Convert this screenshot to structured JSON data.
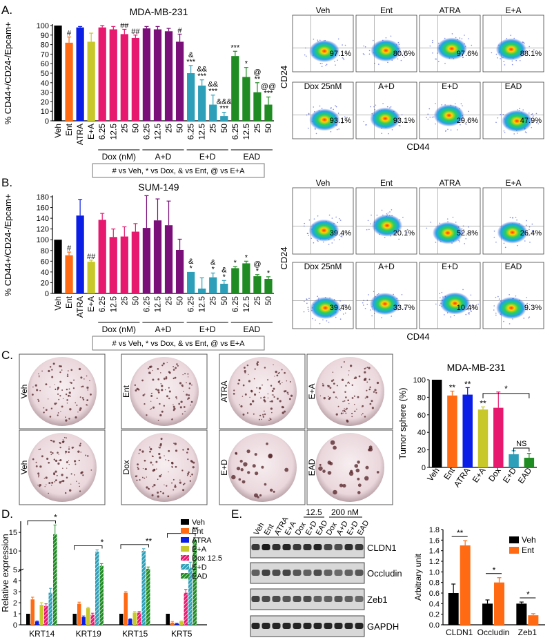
{
  "panels": {
    "A": "A.",
    "B": "B.",
    "C": "C.",
    "D": "D.",
    "E": "E."
  },
  "chart_data": [
    {
      "id": "A",
      "type": "bar",
      "title": "MDA-MB-231",
      "ylabel": "% CD44+/CD24-/Epcam+",
      "ylim": [
        0,
        100
      ],
      "yticks": [
        0,
        10,
        20,
        30,
        40,
        50,
        60,
        70,
        80,
        90,
        100
      ],
      "categories": [
        "Veh",
        "Ent",
        "ATRA",
        "E+A",
        "6.25",
        "12.5",
        "25",
        "50",
        "6.25",
        "12.5",
        "25",
        "50",
        "6.25",
        "12.5",
        "25",
        "50",
        "6.25",
        "12.5",
        "25",
        "50"
      ],
      "values": [
        100,
        82,
        98,
        83,
        98,
        96,
        91,
        87,
        97,
        96,
        94,
        83,
        50,
        37,
        17,
        5,
        68,
        46,
        30,
        17
      ],
      "errors": [
        0,
        6,
        1,
        9,
        2,
        3,
        5,
        3,
        2,
        3,
        3,
        8,
        8,
        6,
        10,
        4,
        5,
        10,
        10,
        8
      ],
      "colors": [
        "#000000",
        "#ff6a13",
        "#0a1ee6",
        "#c8c82a",
        "#e6196e",
        "#e6196e",
        "#e6196e",
        "#e6196e",
        "#7a0f7a",
        "#7a0f7a",
        "#7a0f7a",
        "#7a0f7a",
        "#2e9fb8",
        "#2e9fb8",
        "#2e9fb8",
        "#2e9fb8",
        "#1f8b22",
        "#1f8b22",
        "#1f8b22",
        "#1f8b22"
      ],
      "sig": [
        "",
        "#",
        "",
        "",
        "",
        "",
        "##",
        "##",
        "",
        "",
        "",
        "#",
        "&\n***",
        "&&\n***",
        "&&\n***",
        "&&&\n***",
        "***",
        "*",
        "@\n**",
        "@@\n***"
      ],
      "groups": [
        {
          "label": "Dox (nM)",
          "from": 4,
          "to": 7
        },
        {
          "label": "A+D",
          "from": 8,
          "to": 11
        },
        {
          "label": "E+D",
          "from": 12,
          "to": 15
        },
        {
          "label": "EAD",
          "from": 16,
          "to": 19
        }
      ],
      "legend_note": "# vs Veh, * vs Dox, & vs Ent, @ vs E+A"
    },
    {
      "id": "B",
      "type": "bar",
      "title": "SUM-149",
      "ylabel": "% CD44+/CD24-/Epcam+",
      "ylim": [
        0,
        180
      ],
      "yticks": [
        0,
        20,
        40,
        60,
        80,
        100,
        120,
        140,
        160,
        180
      ],
      "categories": [
        "Veh",
        "Ent",
        "ATRA",
        "E+A",
        "6.25",
        "12.5",
        "25",
        "50",
        "6.25",
        "12.5",
        "25",
        "50",
        "6.25",
        "12.5",
        "25",
        "50",
        "6.25",
        "12.5",
        "25",
        "50"
      ],
      "values": [
        100,
        71,
        145,
        59,
        137,
        105,
        106,
        115,
        122,
        136,
        127,
        81,
        40,
        9,
        30,
        18,
        47,
        56,
        32,
        27
      ],
      "errors": [
        0,
        6,
        30,
        3,
        12,
        15,
        18,
        15,
        60,
        40,
        45,
        20,
        0,
        20,
        8,
        6,
        3,
        4,
        3,
        4
      ],
      "colors": [
        "#000000",
        "#ff6a13",
        "#0a1ee6",
        "#c8c82a",
        "#e6196e",
        "#e6196e",
        "#e6196e",
        "#e6196e",
        "#7a0f7a",
        "#7a0f7a",
        "#7a0f7a",
        "#7a0f7a",
        "#2e9fb8",
        "#2e9fb8",
        "#2e9fb8",
        "#2e9fb8",
        "#1f8b22",
        "#1f8b22",
        "#1f8b22",
        "#1f8b22"
      ],
      "sig": [
        "",
        "#",
        "",
        "##",
        "",
        "",
        "",
        "",
        "",
        "",
        "",
        "",
        "&\n*",
        "",
        "&\n*",
        "&\n*",
        "*",
        "*",
        "@\n*",
        "*"
      ],
      "groups": [
        {
          "label": "Dox (nM)",
          "from": 4,
          "to": 7
        },
        {
          "label": "A+D",
          "from": 8,
          "to": 11
        },
        {
          "label": "E+D",
          "from": 12,
          "to": 15
        },
        {
          "label": "EAD",
          "from": 16,
          "to": 19
        }
      ],
      "legend_note": "# vs Veh, * vs Dox, & vs Ent, @ vs E+A"
    },
    {
      "id": "C",
      "type": "bar",
      "title": "MDA-MB-231",
      "ylabel": "Tumor sphere (%)",
      "ylim": [
        0,
        100
      ],
      "yticks": [
        0,
        20,
        40,
        60,
        80,
        100
      ],
      "categories": [
        "Veh",
        "Ent",
        "ATRA",
        "E+A",
        "Dox",
        "E+D",
        "EAD"
      ],
      "values": [
        100,
        82,
        83,
        66,
        68,
        15,
        11
      ],
      "errors": [
        0,
        5,
        8,
        3,
        18,
        4,
        5
      ],
      "colors": [
        "#000000",
        "#ff6a13",
        "#0a1ee6",
        "#c8c82a",
        "#e6196e",
        "#2e9fb8",
        "#1f8b22"
      ],
      "sig": [
        "",
        "**",
        "**",
        "**",
        "",
        "",
        ""
      ],
      "brackets": [
        {
          "from": 3,
          "to": 6,
          "label": "*"
        },
        {
          "from": 5,
          "to": 6,
          "label": "NS"
        }
      ]
    },
    {
      "id": "D",
      "type": "bar",
      "ylabel": "Relative expression",
      "ylim": [
        0,
        18
      ],
      "yticks": [
        0,
        1,
        2,
        3,
        4,
        5,
        10,
        15
      ],
      "axis_break": true,
      "categories": [
        "KRT14",
        "KRT19",
        "KRT15",
        "KRT5"
      ],
      "series": [
        {
          "name": "Veh",
          "color": "#000000",
          "values": [
            1,
            1,
            1,
            1
          ],
          "errors": [
            0,
            0,
            0,
            0
          ]
        },
        {
          "name": "Ent",
          "color": "#ff6a13",
          "values": [
            2.3,
            1.9,
            2.9,
            0.2
          ],
          "errors": [
            0.2,
            0.15,
            0.1,
            0.1
          ]
        },
        {
          "name": "ATRA",
          "color": "#0a1ee6",
          "values": [
            0.3,
            0.7,
            0.5,
            0.1
          ],
          "errors": [
            0.05,
            0.1,
            0.05,
            0.05
          ]
        },
        {
          "name": "E+A",
          "color": "#c8c82a",
          "values": [
            1.8,
            1.5,
            1.1,
            0.3
          ],
          "errors": [
            0.2,
            0.1,
            0.1,
            0.05
          ]
        },
        {
          "name": "Dox 12.5",
          "color": "#e6196e",
          "values": [
            1.7,
            0.9,
            1.1,
            2.9
          ],
          "errors": [
            0.2,
            0.15,
            0.1,
            0.3
          ]
        },
        {
          "name": "E+D",
          "color": "#2e9fb8",
          "values": [
            2.9,
            9.8,
            10,
            5.5
          ],
          "errors": [
            0.4,
            0.5,
            0.6,
            1.5
          ]
        },
        {
          "name": "EAD",
          "color": "#1f8b22",
          "values": [
            14.5,
            6,
            5.2,
            13
          ],
          "errors": [
            2.5,
            0.6,
            0.5,
            0.6
          ]
        }
      ],
      "sig": [
        "*",
        "*",
        "**",
        "**"
      ]
    },
    {
      "id": "E",
      "type": "bar",
      "ylabel": "Arbitrary unit",
      "ylim": [
        0,
        1.8
      ],
      "yticks": [
        0,
        0.2,
        0.4,
        0.6,
        0.8,
        1.0,
        1.2,
        1.4,
        1.6,
        1.8
      ],
      "categories": [
        "CLDN1",
        "Occludin",
        "Zeb1"
      ],
      "series": [
        {
          "name": "Veh",
          "color": "#000000",
          "values": [
            0.6,
            0.4,
            0.4
          ],
          "errors": [
            0.17,
            0.07,
            0.03
          ]
        },
        {
          "name": "Ent",
          "color": "#ff6a13",
          "values": [
            1.5,
            0.8,
            0.18
          ],
          "errors": [
            0.09,
            0.09,
            0.03
          ]
        }
      ],
      "sig": [
        "**",
        "*",
        "*"
      ]
    }
  ],
  "flow": {
    "A": {
      "xlabel": "CD44",
      "ylabel": "CD24",
      "plots": [
        {
          "label": "Veh",
          "pct": "97.1%"
        },
        {
          "label": "Ent",
          "pct": "80.6%"
        },
        {
          "label": "ATRA",
          "pct": "97.6%"
        },
        {
          "label": "E+A",
          "pct": "88.1%"
        },
        {
          "label": "Dox 25nM",
          "pct": "93.1%"
        },
        {
          "label": "A+D",
          "pct": "93.1%"
        },
        {
          "label": "E+D",
          "pct": "29.6%"
        },
        {
          "label": "EAD",
          "pct": "47.9%"
        }
      ]
    },
    "B": {
      "xlabel": "CD44",
      "ylabel": "CD24",
      "plots": [
        {
          "label": "Veh",
          "pct": "39.4%"
        },
        {
          "label": "Ent",
          "pct": "20.1%"
        },
        {
          "label": "ATRA",
          "pct": "52.8%"
        },
        {
          "label": "E+A",
          "pct": "26.4%"
        },
        {
          "label": "Dox 25nM",
          "pct": "39.4%"
        },
        {
          "label": "A+D",
          "pct": "33.7%"
        },
        {
          "label": "E+D",
          "pct": "10.4%"
        },
        {
          "label": "EAD",
          "pct": "9.3%"
        }
      ]
    }
  },
  "spheres": [
    "Veh",
    "Ent",
    "ATRA",
    "E+A",
    "Veh",
    "Dox",
    "E+D",
    "EAD"
  ],
  "blot": {
    "lanes": [
      "Veh",
      "Ent",
      "ATRA",
      "E+A",
      "Dox",
      "E+D",
      "EAD",
      "Dox",
      "A+D",
      "E+D",
      "EAD"
    ],
    "header_12_5": "12.5",
    "header_200": "200 nM",
    "rows": [
      "CLDN1",
      "Occludin",
      "Zeb1",
      "GAPDH"
    ]
  }
}
